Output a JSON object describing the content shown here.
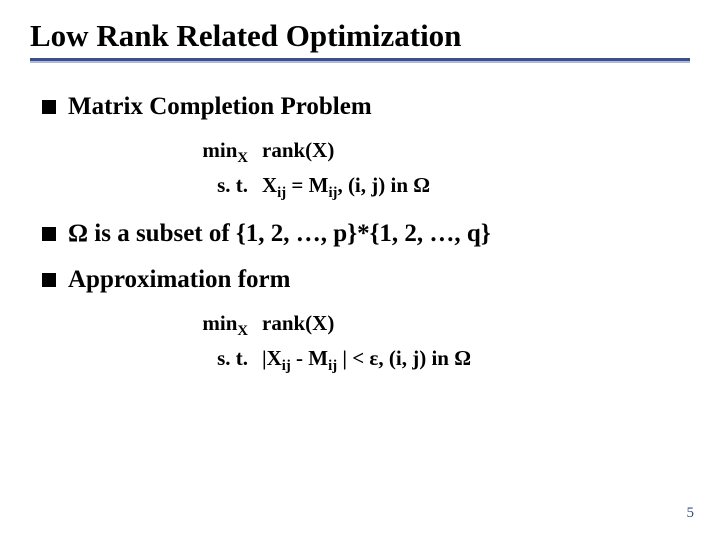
{
  "slide": {
    "title": "Low Rank Related Optimization",
    "rule_top_color": "#3b4f8b",
    "rule_bot_color": "#b0b9d9",
    "title_fontsize": 31,
    "bullet_fontsize": 25,
    "formula_fontsize": 21,
    "background_color": "#ffffff",
    "text_color": "#000000",
    "page_number": "5",
    "page_number_color": "#3b4f8b",
    "bullets": [
      {
        "text": "Matrix Completion Problem"
      },
      {
        "text": "Ω is a subset of {1, 2, …, p}*{1, 2, …, q}"
      },
      {
        "text": "Approximation form"
      }
    ],
    "formula1": {
      "row1_left_html": "min<sub>X</sub>",
      "row1_right": "rank(X)",
      "row2_left": "s. t.",
      "row2_right_html": "X<sub>ij</sub> = M<sub>ij</sub>, (i, j) in Ω"
    },
    "formula2": {
      "row1_left_html": "min<sub>X</sub>",
      "row1_right": "rank(X)",
      "row2_left": "s. t.",
      "row2_right_html": "|X<sub>ij</sub> - M<sub>ij</sub> | &lt; ε, (i, j) in Ω"
    }
  }
}
